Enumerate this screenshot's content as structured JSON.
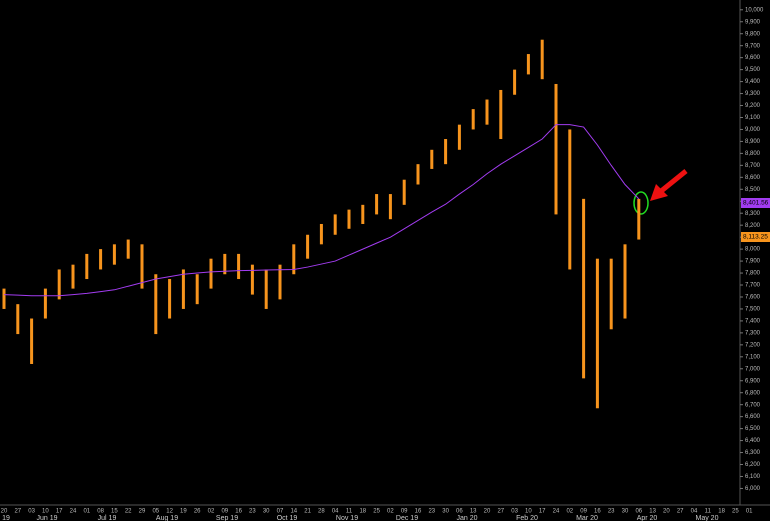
{
  "chart_data": {
    "type": "hl_bar",
    "categories": [
      "20",
      "27",
      "03",
      "10",
      "17",
      "24",
      "01",
      "08",
      "15",
      "22",
      "29",
      "05",
      "12",
      "19",
      "26",
      "02",
      "09",
      "16",
      "23",
      "30",
      "07",
      "14",
      "21",
      "28",
      "04",
      "11",
      "18",
      "25",
      "02",
      "09",
      "16",
      "23",
      "30",
      "06",
      "13",
      "20",
      "27",
      "03",
      "10",
      "17",
      "24",
      "02",
      "09",
      "16",
      "23",
      "30",
      "06",
      "13",
      "20",
      "27",
      "04",
      "11",
      "18",
      "25",
      "01"
    ],
    "high": [
      7670,
      7540,
      7420,
      7670,
      7830,
      7870,
      7960,
      8000,
      8040,
      8080,
      8040,
      7790,
      7750,
      7830,
      7790,
      7920,
      7960,
      7960,
      7870,
      7830,
      7870,
      8040,
      8120,
      8210,
      8290,
      8330,
      8370,
      8460,
      8460,
      8580,
      8710,
      8830,
      8920,
      9040,
      9170,
      9250,
      9330,
      9500,
      9630,
      9750,
      9380,
      9000,
      8420,
      7920,
      7920,
      8040,
      8420,
      null,
      null,
      null,
      null,
      null,
      null,
      null,
      null
    ],
    "low": [
      7500,
      7290,
      7040,
      7420,
      7580,
      7670,
      7750,
      7830,
      7870,
      7920,
      7670,
      7290,
      7420,
      7500,
      7540,
      7670,
      7790,
      7750,
      7620,
      7500,
      7580,
      7790,
      7920,
      8040,
      8120,
      8170,
      8210,
      8290,
      8250,
      8370,
      8540,
      8670,
      8710,
      8830,
      9000,
      9040,
      8920,
      9290,
      9460,
      9420,
      8290,
      7830,
      6920,
      6670,
      7330,
      7420,
      8080,
      null,
      null,
      null,
      null,
      null,
      null,
      null,
      null
    ],
    "color": "#f7941d",
    "last_label": "8,113.25",
    "ma": {
      "color": "#a23cf0",
      "last_label": "8,401.56",
      "values": [
        7620,
        7615,
        7610,
        7610,
        7610,
        7620,
        7630,
        7645,
        7660,
        7690,
        7720,
        7750,
        7770,
        7790,
        7800,
        7810,
        7815,
        7820,
        7822,
        7825,
        7828,
        7830,
        7850,
        7875,
        7900,
        7950,
        8000,
        8050,
        8100,
        8170,
        8240,
        8310,
        8375,
        8460,
        8540,
        8630,
        8710,
        8780,
        8850,
        8920,
        9040,
        9040,
        9020,
        8870,
        8700,
        8540,
        8420,
        null,
        null,
        null,
        null,
        null,
        null,
        null,
        null
      ]
    },
    "months": [
      "19",
      "Jun 19",
      "Jul 19",
      "Aug 19",
      "Sep 19",
      "Oct 19",
      "Nov 19",
      "Dec 19",
      "Jan 20",
      "Feb 20",
      "Mar 20",
      "Apr 20",
      "May 20"
    ],
    "ylim": [
      5870,
      10040
    ],
    "yticks": [
      {
        "value": 6000,
        "label": "6,000"
      },
      {
        "value": 6100,
        "label": "6,100"
      },
      {
        "value": 6200,
        "label": "6,200"
      },
      {
        "value": 6300,
        "label": "6,300"
      },
      {
        "value": 6400,
        "label": "6,400"
      },
      {
        "value": 6500,
        "label": "6,500"
      },
      {
        "value": 6600,
        "label": "6,600"
      },
      {
        "value": 6700,
        "label": "6,700"
      },
      {
        "value": 6800,
        "label": "6,800"
      },
      {
        "value": 6900,
        "label": "6,900"
      },
      {
        "value": 7000,
        "label": "7,000"
      },
      {
        "value": 7100,
        "label": "7,100"
      },
      {
        "value": 7200,
        "label": "7,200"
      },
      {
        "value": 7300,
        "label": "7,300"
      },
      {
        "value": 7400,
        "label": "7,400"
      },
      {
        "value": 7500,
        "label": "7,500"
      },
      {
        "value": 7600,
        "label": "7,600"
      },
      {
        "value": 7700,
        "label": "7,700"
      },
      {
        "value": 7800,
        "label": "7,800"
      },
      {
        "value": 7900,
        "label": "7,900"
      },
      {
        "value": 8000,
        "label": "8,000"
      },
      {
        "value": 8100,
        "label": "8,100"
      },
      {
        "value": 8200,
        "label": "8,200"
      },
      {
        "value": 8300,
        "label": "8,300"
      },
      {
        "value": 8400,
        "label": "8,400"
      },
      {
        "value": 8500,
        "label": "8,500"
      },
      {
        "value": 8600,
        "label": "8,600"
      },
      {
        "value": 8700,
        "label": "8,700"
      },
      {
        "value": 8800,
        "label": "8,800"
      },
      {
        "value": 8900,
        "label": "8,900"
      },
      {
        "value": 9000,
        "label": "9,000"
      },
      {
        "value": 9100,
        "label": "9,100"
      },
      {
        "value": 9200,
        "label": "9,200"
      },
      {
        "value": 9300,
        "label": "9,300"
      },
      {
        "value": 9400,
        "label": "9,400"
      },
      {
        "value": 9500,
        "label": "9,500"
      },
      {
        "value": 9600,
        "label": "9,600"
      },
      {
        "value": 9700,
        "label": "9,700"
      },
      {
        "value": 9800,
        "label": "9,800"
      },
      {
        "value": 9900,
        "label": "9,900"
      },
      {
        "value": 10000,
        "label": "10,000"
      }
    ]
  }
}
